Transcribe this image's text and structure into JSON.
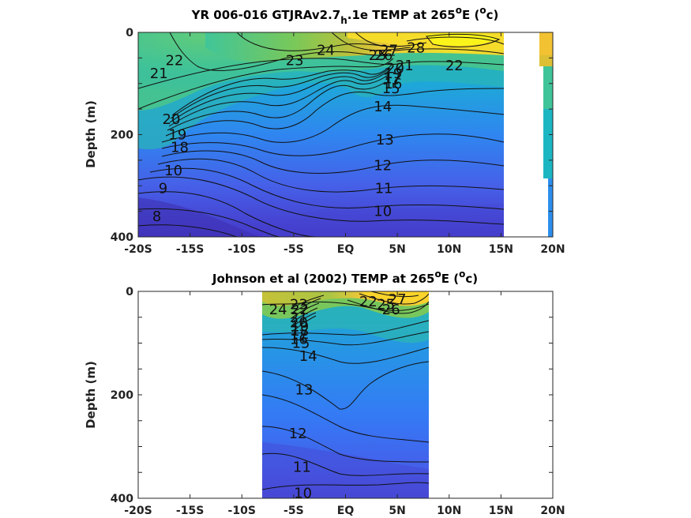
{
  "chart_data": [
    {
      "type": "heatmap",
      "subtype": "filled-contour",
      "title": "YR 006-016 GTJRAv2.7",
      "title_sub": "h",
      "title_tail": ".1e TEMP at 265",
      "title_sup": "o",
      "title_end": "E (",
      "title_unit_sup": "o",
      "title_unit_end": "c)",
      "xlabel": "",
      "ylabel": "Depth (m)",
      "x_ticks": [
        "-20S",
        "-15S",
        "-10S",
        "-5S",
        "EQ",
        "5N",
        "10N",
        "15N",
        "20N"
      ],
      "y_ticks": [
        "0",
        "200",
        "400"
      ],
      "xlim": [
        -20,
        20
      ],
      "ylim": [
        0,
        400
      ],
      "y_reversed": true,
      "colormap": [
        "#3e26a8",
        "#4a46e0",
        "#3a7cfa",
        "#1e9fe0",
        "#13bdbd",
        "#3fca8a",
        "#98c93e",
        "#e3bb2f",
        "#fbdd2a",
        "#f9fb14"
      ],
      "contour_labels": [
        {
          "text": "28",
          "lat": 6.8,
          "depth": 30
        },
        {
          "text": "27",
          "lat": 4.2,
          "depth": 35
        },
        {
          "text": "26",
          "lat": 3.7,
          "depth": 45
        },
        {
          "text": "25",
          "lat": 3.1,
          "depth": 45
        },
        {
          "text": "24",
          "lat": -1.9,
          "depth": 35
        },
        {
          "text": "23",
          "lat": -4.9,
          "depth": 55
        },
        {
          "text": "22",
          "lat": -16.5,
          "depth": 55
        },
        {
          "text": "22",
          "lat": 10.5,
          "depth": 65
        },
        {
          "text": "21",
          "lat": -18.0,
          "depth": 80
        },
        {
          "text": "21",
          "lat": 5.7,
          "depth": 65
        },
        {
          "text": "20",
          "lat": -16.8,
          "depth": 170
        },
        {
          "text": "20",
          "lat": 4.8,
          "depth": 70
        },
        {
          "text": "19",
          "lat": -16.2,
          "depth": 200
        },
        {
          "text": "19",
          "lat": 4.6,
          "depth": 80
        },
        {
          "text": "18",
          "lat": -16.0,
          "depth": 225
        },
        {
          "text": "17",
          "lat": 4.5,
          "depth": 90
        },
        {
          "text": "16",
          "lat": 4.6,
          "depth": 100
        },
        {
          "text": "15",
          "lat": 4.4,
          "depth": 110
        },
        {
          "text": "14",
          "lat": 3.6,
          "depth": 145
        },
        {
          "text": "13",
          "lat": 3.8,
          "depth": 210
        },
        {
          "text": "12",
          "lat": 3.6,
          "depth": 260
        },
        {
          "text": "11",
          "lat": 3.7,
          "depth": 305
        },
        {
          "text": "10",
          "lat": -16.6,
          "depth": 270
        },
        {
          "text": "10",
          "lat": 3.6,
          "depth": 350
        },
        {
          "text": "9",
          "lat": -17.6,
          "depth": 305
        },
        {
          "text": "8",
          "lat": -18.2,
          "depth": 360
        }
      ]
    },
    {
      "type": "heatmap",
      "subtype": "filled-contour",
      "title": "Johnson et al (2002) TEMP at 265",
      "title_sup": "o",
      "title_end": "E (",
      "title_unit_sup": "o",
      "title_unit_end": "c)",
      "xlabel": "",
      "ylabel": "Depth (m)",
      "x_ticks": [
        "-20S",
        "-15S",
        "-10S",
        "-5S",
        "EQ",
        "5N",
        "10N",
        "15N",
        "20N"
      ],
      "y_ticks": [
        "0",
        "200",
        "400"
      ],
      "xlim": [
        -20,
        20
      ],
      "ylim": [
        0,
        400
      ],
      "y_reversed": true,
      "data_lat_range": [
        -8,
        8
      ],
      "contour_labels": [
        {
          "text": "24",
          "lat": -6.5,
          "depth": 35
        },
        {
          "text": "23",
          "lat": -4.5,
          "depth": 25
        },
        {
          "text": "22",
          "lat": -4.4,
          "depth": 35
        },
        {
          "text": "21",
          "lat": -4.5,
          "depth": 50
        },
        {
          "text": "20",
          "lat": -4.5,
          "depth": 60
        },
        {
          "text": "19",
          "lat": -4.4,
          "depth": 68
        },
        {
          "text": "18",
          "lat": -4.4,
          "depth": 76
        },
        {
          "text": "17",
          "lat": -4.5,
          "depth": 85
        },
        {
          "text": "16",
          "lat": -4.5,
          "depth": 92
        },
        {
          "text": "15",
          "lat": -4.3,
          "depth": 100
        },
        {
          "text": "14",
          "lat": -3.6,
          "depth": 125
        },
        {
          "text": "13",
          "lat": -4.0,
          "depth": 190
        },
        {
          "text": "12",
          "lat": -4.6,
          "depth": 275
        },
        {
          "text": "11",
          "lat": -4.2,
          "depth": 340
        },
        {
          "text": "10",
          "lat": -4.1,
          "depth": 390
        },
        {
          "text": "22",
          "lat": 2.2,
          "depth": 20
        },
        {
          "text": "25",
          "lat": 3.9,
          "depth": 25
        },
        {
          "text": "26",
          "lat": 4.4,
          "depth": 35
        },
        {
          "text": "27",
          "lat": 5.0,
          "depth": 15
        }
      ]
    }
  ]
}
